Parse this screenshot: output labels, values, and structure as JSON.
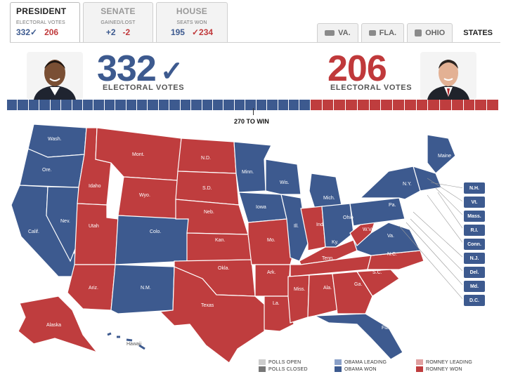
{
  "tabs": [
    {
      "title": "PRESIDENT",
      "sub": "ELECTORAL VOTES",
      "val1": "332✓",
      "val2": "206"
    },
    {
      "title": "SENATE",
      "sub": "GAINED/LOST",
      "val1": "+2",
      "val2": "-2"
    },
    {
      "title": "HOUSE",
      "sub": "SEATS WON",
      "val1": "195",
      "val2": "✓234"
    }
  ],
  "state_tabs": [
    "VA.",
    "FLA.",
    "OHIO",
    "STATES"
  ],
  "headline": {
    "obama_votes": "332",
    "obama_check": "✓",
    "romney_votes": "206",
    "label": "ELECTORAL VOTES",
    "win_label": "270 TO WIN"
  },
  "colors": {
    "obama": "#3d5a8f",
    "romney": "#bf3d3e",
    "obama_leading": "#8aa0c8",
    "romney_leading": "#e0a0a0",
    "polls_open": "#cccccc",
    "polls_closed": "#777777"
  },
  "map_labels": [
    "Wash.",
    "Ore.",
    "Calif.",
    "Nev.",
    "Idaho",
    "Mont.",
    "Wyo.",
    "Utah",
    "Colo.",
    "Ariz.",
    "N.M.",
    "N.D.",
    "S.D.",
    "Neb.",
    "Kan.",
    "Okla.",
    "Texas",
    "Minn.",
    "Iowa",
    "Mo.",
    "Ark.",
    "La.",
    "Wis.",
    "Ill.",
    "Mich.",
    "Ind.",
    "Ohio",
    "Ky.",
    "Tenn.",
    "Miss.",
    "Ala.",
    "Ga.",
    "Fla.",
    "S.C.",
    "N.C.",
    "Va.",
    "W.Va.",
    "Pa.",
    "N.Y.",
    "Maine",
    "Alaska",
    "Hawaii"
  ],
  "side_boxes": [
    "N.H.",
    "Vt.",
    "Mass.",
    "R.I.",
    "Conn.",
    "N.J.",
    "Del.",
    "Md.",
    "D.C."
  ],
  "legend": [
    "POLLS OPEN",
    "OBAMA LEADING",
    "ROMNEY LEADING",
    "POLLS CLOSED",
    "OBAMA WON",
    "ROMNEY WON"
  ]
}
